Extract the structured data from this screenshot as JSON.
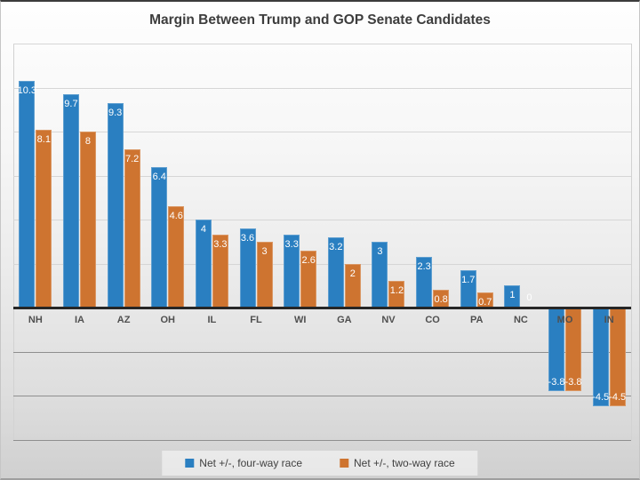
{
  "chart": {
    "title": "Margin Between Trump and GOP Senate Candidates"
  },
  "chart_data": {
    "type": "bar",
    "title": "Margin Between Trump and GOP Senate Candidates",
    "xlabel": "",
    "ylabel": "",
    "categories": [
      "NH",
      "IA",
      "AZ",
      "OH",
      "IL",
      "FL",
      "WI",
      "GA",
      "NV",
      "CO",
      "PA",
      "NC",
      "MO",
      "IN"
    ],
    "series": [
      {
        "name": "Net +/-, four-way race",
        "color": "#2A7FC1",
        "values": [
          10.3,
          9.7,
          9.3,
          6.4,
          4,
          3.6,
          3.3,
          3.2,
          3,
          2.3,
          1.7,
          1,
          -3.8,
          -4.5
        ]
      },
      {
        "name": "Net +/-, two-way race",
        "color": "#CE7430",
        "values": [
          8.1,
          8,
          7.2,
          4.6,
          3.3,
          3,
          2.6,
          2,
          1.2,
          0.8,
          0.7,
          0,
          -3.8,
          -4.5
        ]
      }
    ],
    "ylim": [
      -6,
      12
    ],
    "gridline_step": 2,
    "grid": true,
    "legend_position": "bottom",
    "data_labels": "inside-end",
    "colors": {
      "gridline_above_zero": "#d6d6d6",
      "gridline_below_zero": "#8f8f8f",
      "zero_axis": "#262626",
      "data_label_text": "#ffffff",
      "category_label_text": "#4f4f4f"
    }
  }
}
